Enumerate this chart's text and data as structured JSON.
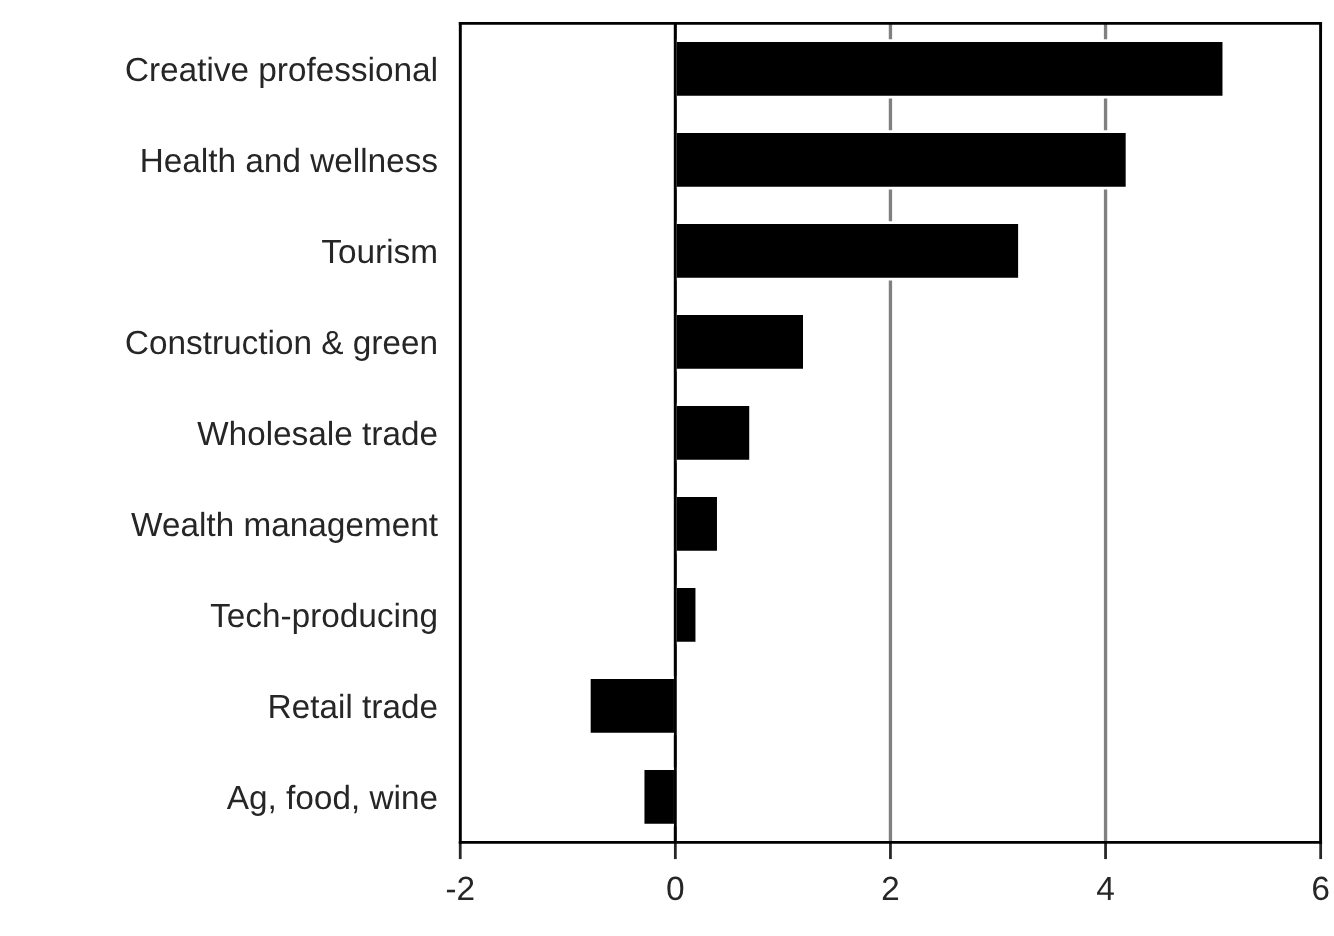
{
  "chart_data": {
    "type": "bar",
    "orientation": "horizontal",
    "categories": [
      "Creative professional",
      "Health and wellness",
      "Tourism",
      "Construction & green",
      "Wholesale trade",
      "Wealth management",
      "Tech-producing",
      "Retail trade",
      "Ag, food, wine"
    ],
    "values": [
      5.1,
      4.2,
      3.2,
      1.2,
      0.7,
      0.4,
      0.2,
      -0.8,
      -0.3
    ],
    "color": "#000000",
    "xlim": [
      -2,
      6
    ],
    "xticks": [
      -2,
      0,
      2,
      4,
      6
    ],
    "grid": "x"
  }
}
